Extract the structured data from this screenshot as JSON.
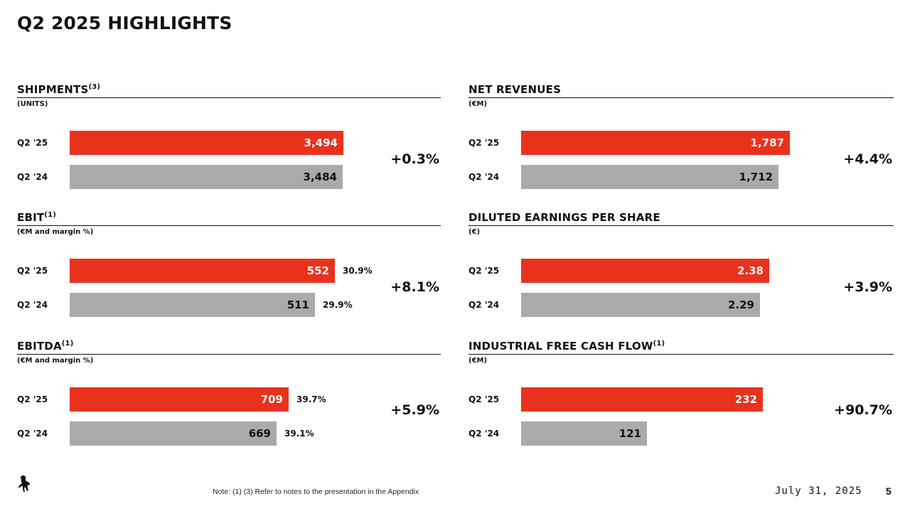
{
  "title": "Q2 2025 HIGHLIGHTS",
  "colors": {
    "current": "#e8321e",
    "prior": "#aaaaaa"
  },
  "chart_data": [
    {
      "type": "bar",
      "title": "SHIPMENTS",
      "title_sup": "(3)",
      "unit": "(UNITS)",
      "categories": [
        "Q2 '25",
        "Q2 '24"
      ],
      "values": [
        3494,
        3484
      ],
      "value_labels": [
        "3,494",
        "3,484"
      ],
      "margins": [],
      "change": "+0.3%",
      "xlim": [
        0,
        3500
      ]
    },
    {
      "type": "bar",
      "title": "NET REVENUES",
      "title_sup": "",
      "unit": "(€M)",
      "categories": [
        "Q2 '25",
        "Q2 '24"
      ],
      "values": [
        1787,
        1712
      ],
      "value_labels": [
        "1,787",
        "1,712"
      ],
      "margins": [],
      "change": "+4.4%",
      "xlim": [
        0,
        1787
      ]
    },
    {
      "type": "bar",
      "title": "EBIT",
      "title_sup": "(1)",
      "unit": "(€M and margin %)",
      "categories": [
        "Q2 '25",
        "Q2 '24"
      ],
      "values": [
        552,
        511
      ],
      "value_labels": [
        "552",
        "511"
      ],
      "margins": [
        "30.9%",
        "29.9%"
      ],
      "change": "+8.1%",
      "xlim": [
        0,
        572
      ]
    },
    {
      "type": "bar",
      "title": "DILUTED EARNINGS PER SHARE",
      "title_sup": "",
      "unit": "(€)",
      "categories": [
        "Q2 '25",
        "Q2 '24"
      ],
      "values": [
        2.38,
        2.29
      ],
      "value_labels": [
        "2.38",
        "2.29"
      ],
      "margins": [],
      "change": "+3.9%",
      "xlim": [
        0,
        2.58
      ]
    },
    {
      "type": "bar",
      "title": "EBITDA",
      "title_sup": "(1)",
      "unit": "(€M and margin %)",
      "categories": [
        "Q2 '25",
        "Q2 '24"
      ],
      "values": [
        709,
        669
      ],
      "value_labels": [
        "709",
        "669"
      ],
      "margins": [
        "39.7%",
        "39.1%"
      ],
      "change": "+5.9%",
      "xlim": [
        0,
        888
      ]
    },
    {
      "type": "bar",
      "title": "INDUSTRIAL FREE CASH FLOW",
      "title_sup": "(1)",
      "unit": "(€M)",
      "categories": [
        "Q2 '25",
        "Q2 '24"
      ],
      "values": [
        232,
        121
      ],
      "value_labels": [
        "232",
        "121"
      ],
      "margins": [],
      "change": "+90.7%",
      "xlim": [
        0,
        258
      ]
    }
  ],
  "footer": {
    "note": "Note: (1) (3) Refer to notes to the presentation in the Appendix",
    "date": "July 31, 2025",
    "page": "5"
  }
}
